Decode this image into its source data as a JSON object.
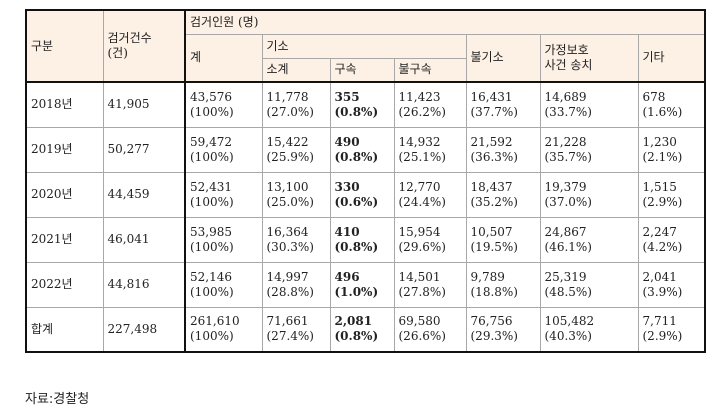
{
  "header": {
    "category": "구분",
    "arrests_line1": "검거건수",
    "arrests_line2": "(건)",
    "persons_group": "검거인원 (명)",
    "total": "계",
    "indicted_group": "기소",
    "subtotal": "소계",
    "detained": "구속",
    "not_detained": "불구속",
    "not_indicted": "불기소",
    "domestic_line1": "가정보호",
    "domestic_line2": "사건 송치",
    "other": "기타"
  },
  "rows": [
    {
      "label": "2018년",
      "arrests": "41,905",
      "total": [
        "43,576",
        "(100%)"
      ],
      "subtotal": [
        "11,778",
        "(27.0%)"
      ],
      "detained": [
        "355",
        "(0.8%)"
      ],
      "not_detained": [
        "11,423",
        "(26.2%)"
      ],
      "not_indicted": [
        "16,431",
        "(37.7%)"
      ],
      "domestic": [
        "14,689",
        "(33.7%)"
      ],
      "other": [
        "678",
        "(1.6%)"
      ]
    },
    {
      "label": "2019년",
      "arrests": "50,277",
      "total": [
        "59,472",
        "(100%)"
      ],
      "subtotal": [
        "15,422",
        "(25.9%)"
      ],
      "detained": [
        "490",
        "(0.8%)"
      ],
      "not_detained": [
        "14,932",
        "(25.1%)"
      ],
      "not_indicted": [
        "21,592",
        "(36.3%)"
      ],
      "domestic": [
        "21,228",
        "(35.7%)"
      ],
      "other": [
        "1,230",
        "(2.1%)"
      ]
    },
    {
      "label": "2020년",
      "arrests": "44,459",
      "total": [
        "52,431",
        "(100%)"
      ],
      "subtotal": [
        "13,100",
        "(25.0%)"
      ],
      "detained": [
        "330",
        "(0.6%)"
      ],
      "not_detained": [
        "12,770",
        "(24.4%)"
      ],
      "not_indicted": [
        "18,437",
        "(35.2%)"
      ],
      "domestic": [
        "19,379",
        "(37.0%)"
      ],
      "other": [
        "1,515",
        "(2.9%)"
      ]
    },
    {
      "label": "2021년",
      "arrests": "46,041",
      "total": [
        "53,985",
        "(100%)"
      ],
      "subtotal": [
        "16,364",
        "(30.3%)"
      ],
      "detained": [
        "410",
        "(0.8%)"
      ],
      "not_detained": [
        "15,954",
        "(29.6%)"
      ],
      "not_indicted": [
        "10,507",
        "(19.5%)"
      ],
      "domestic": [
        "24,867",
        "(46.1%)"
      ],
      "other": [
        "2,247",
        "(4.2%)"
      ]
    },
    {
      "label": "2022년",
      "arrests": "44,816",
      "total": [
        "52,146",
        "(100%)"
      ],
      "subtotal": [
        "14,997",
        "(28.8%)"
      ],
      "detained": [
        "496",
        "(1.0%)"
      ],
      "not_detained": [
        "14,501",
        "(27.8%)"
      ],
      "not_indicted": [
        "9,789",
        "(18.8%)"
      ],
      "domestic": [
        "25,319",
        "(48.5%)"
      ],
      "other": [
        "2,041",
        "(3.9%)"
      ]
    },
    {
      "label": "합계",
      "arrests": "227,498",
      "total": [
        "261,610",
        "(100%)"
      ],
      "subtotal": [
        "71,661",
        "(27.4%)"
      ],
      "detained": [
        "2,081",
        "(0.8%)"
      ],
      "not_detained": [
        "69,580",
        "(26.6%)"
      ],
      "not_indicted": [
        "76,756",
        "(29.3%)"
      ],
      "domestic": [
        "105,482",
        "(40.3%)"
      ],
      "other": [
        "7,711",
        "(2.9%)"
      ]
    }
  ],
  "source": "자료:경찰청"
}
